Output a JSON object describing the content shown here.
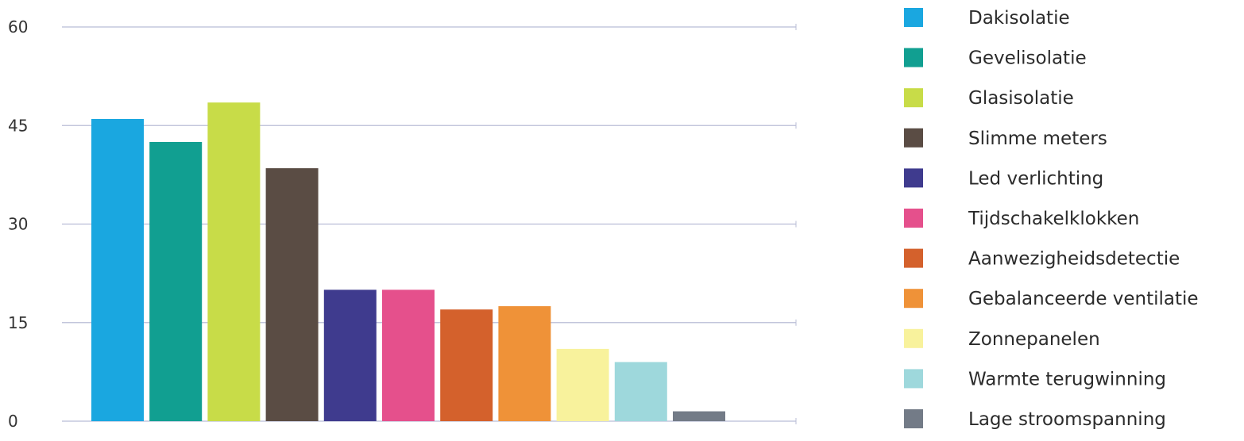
{
  "chart_data": {
    "type": "bar",
    "categories": [
      "Dakisolatie",
      "Gevelisolatie",
      "Glasisolatie",
      "Slimme meters",
      "Led verlichting",
      "Tijdschakelklokken",
      "Aanwezigheidsdetectie",
      "Gebalanceerde ventilatie",
      "Zonnepanelen",
      "Warmte terugwinning",
      "Lage stroomspanning"
    ],
    "values": [
      46,
      42.5,
      48.5,
      38.5,
      20,
      20,
      17,
      17.5,
      11,
      9,
      1.5
    ],
    "colors": [
      "#1aa7e0",
      "#119f91",
      "#c8dc48",
      "#5a4c44",
      "#3f3b8e",
      "#e5508c",
      "#d4612c",
      "#ef9238",
      "#f8f29c",
      "#9ed8dc",
      "#737b87"
    ],
    "title": "",
    "xlabel": "",
    "ylabel": "",
    "ylim": [
      0,
      60
    ],
    "yticks": [
      "0",
      "15",
      "30",
      "45",
      "60"
    ],
    "grid": true,
    "legend_position": "right"
  }
}
